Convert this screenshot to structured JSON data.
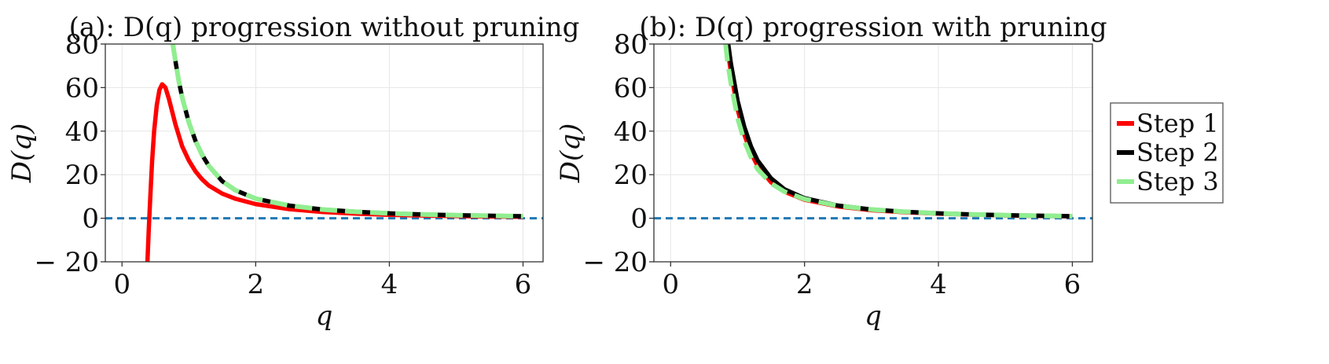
{
  "chart_data": [
    {
      "type": "line",
      "title": "(a): D(q) progression without pruning",
      "xlabel": "q",
      "ylabel": "D(q)",
      "xlim": [
        -0.25,
        6.3
      ],
      "ylim": [
        -20,
        80
      ],
      "xticks": [
        0,
        2,
        4,
        6
      ],
      "yticks": [
        -20,
        0,
        20,
        40,
        60,
        80
      ],
      "xtick_labels": [
        "0",
        "2",
        "4",
        "6"
      ],
      "ytick_labels": [
        "− 20",
        "0",
        "20",
        "40",
        "60",
        "80"
      ],
      "grid": true,
      "reference_line": {
        "y": 0,
        "style": "dashed",
        "color": "#1f77b4"
      },
      "series": [
        {
          "name": "Step 1",
          "color": "#ff0000",
          "style": "solid",
          "x": [
            0.38,
            0.4,
            0.42,
            0.45,
            0.48,
            0.52,
            0.56,
            0.6,
            0.65,
            0.7,
            0.8,
            0.9,
            1.0,
            1.1,
            1.2,
            1.3,
            1.5,
            1.7,
            2.0,
            2.5,
            3.0,
            3.5,
            4.0,
            4.5,
            5.0,
            5.5,
            6.0
          ],
          "y": [
            -20,
            -5,
            8,
            26,
            40,
            52,
            59,
            61.5,
            60,
            55,
            43,
            33,
            26.5,
            21.5,
            17.8,
            15,
            11.3,
            8.9,
            6.5,
            4.2,
            2.9,
            2.1,
            1.6,
            1.25,
            1.0,
            0.8,
            0.65
          ]
        },
        {
          "name": "Step 2",
          "color": "#000000",
          "style": "solid",
          "x": [
            0.76,
            0.8,
            0.85,
            0.9,
            1.0,
            1.1,
            1.2,
            1.3,
            1.5,
            1.7,
            2.0,
            2.5,
            3.0,
            3.5,
            4.0,
            4.5,
            5.0,
            5.5,
            6.0
          ],
          "y": [
            80,
            72,
            63,
            55.5,
            44,
            35.5,
            29,
            24,
            17,
            12.8,
            9.0,
            5.8,
            4.0,
            2.95,
            2.25,
            1.75,
            1.4,
            1.15,
            0.95
          ]
        },
        {
          "name": "Step 3",
          "color": "#90ee90",
          "style": "dashed",
          "x": [
            0.76,
            0.8,
            0.85,
            0.9,
            1.0,
            1.1,
            1.2,
            1.3,
            1.5,
            1.7,
            2.0,
            2.5,
            3.0,
            3.5,
            4.0,
            4.5,
            5.0,
            5.5,
            6.0
          ],
          "y": [
            80,
            72,
            63,
            55.5,
            44,
            35.5,
            29,
            24,
            17,
            12.8,
            9.0,
            5.8,
            4.0,
            2.95,
            2.25,
            1.75,
            1.4,
            1.15,
            0.95
          ]
        }
      ]
    },
    {
      "type": "line",
      "title": "(b): D(q) progression with pruning",
      "xlabel": "q",
      "ylabel": "D(q)",
      "xlim": [
        -0.25,
        6.3
      ],
      "ylim": [
        -20,
        80
      ],
      "xticks": [
        0,
        2,
        4,
        6
      ],
      "yticks": [
        -20,
        0,
        20,
        40,
        60,
        80
      ],
      "xtick_labels": [
        "0",
        "2",
        "4",
        "6"
      ],
      "ytick_labels": [
        "− 20",
        "0",
        "20",
        "40",
        "60",
        "80"
      ],
      "grid": true,
      "reference_line": {
        "y": 0,
        "style": "dashed",
        "color": "#1f77b4"
      },
      "series": [
        {
          "name": "Step 1",
          "color": "#ff0000",
          "style": "solid",
          "x": [
            0.85,
            0.9,
            1.0,
            1.1,
            1.2,
            1.3,
            1.5,
            1.7,
            2.0,
            2.5,
            3.0,
            3.5,
            4.0,
            4.5,
            5.0,
            5.5,
            6.0
          ],
          "y": [
            78,
            67,
            50,
            38.5,
            30,
            24,
            16.5,
            12.2,
            8.5,
            5.4,
            3.7,
            2.75,
            2.1,
            1.65,
            1.3,
            1.08,
            0.9
          ]
        },
        {
          "name": "Step 2",
          "color": "#000000",
          "style": "solid",
          "x": [
            0.86,
            0.9,
            1.0,
            1.1,
            1.2,
            1.3,
            1.5,
            1.7,
            2.0,
            2.5,
            3.0,
            3.5,
            4.0,
            4.5,
            5.0,
            5.5,
            6.0
          ],
          "y": [
            80,
            71,
            54,
            42,
            33,
            26.5,
            18.3,
            13.3,
            9.2,
            5.8,
            4.0,
            2.95,
            2.25,
            1.75,
            1.4,
            1.15,
            0.95
          ]
        },
        {
          "name": "Step 3",
          "color": "#90ee90",
          "style": "dashed",
          "x": [
            0.82,
            0.85,
            0.9,
            1.0,
            1.1,
            1.2,
            1.3,
            1.5,
            1.7,
            2.0,
            2.5,
            3.0,
            3.5,
            4.0,
            4.5,
            5.0,
            5.5,
            6.0
          ],
          "y": [
            80,
            72,
            62,
            46,
            35.5,
            28,
            22.5,
            16,
            12.2,
            8.8,
            5.7,
            4.0,
            2.95,
            2.25,
            1.75,
            1.4,
            1.15,
            0.95
          ]
        }
      ]
    }
  ],
  "legend": {
    "placement": "right",
    "entries": [
      {
        "label": "Step 1",
        "color": "#ff0000",
        "style": "solid"
      },
      {
        "label": "Step 2",
        "color": "#000000",
        "style": "solid"
      },
      {
        "label": "Step 3",
        "color": "#90ee90",
        "style": "dashed"
      }
    ]
  }
}
